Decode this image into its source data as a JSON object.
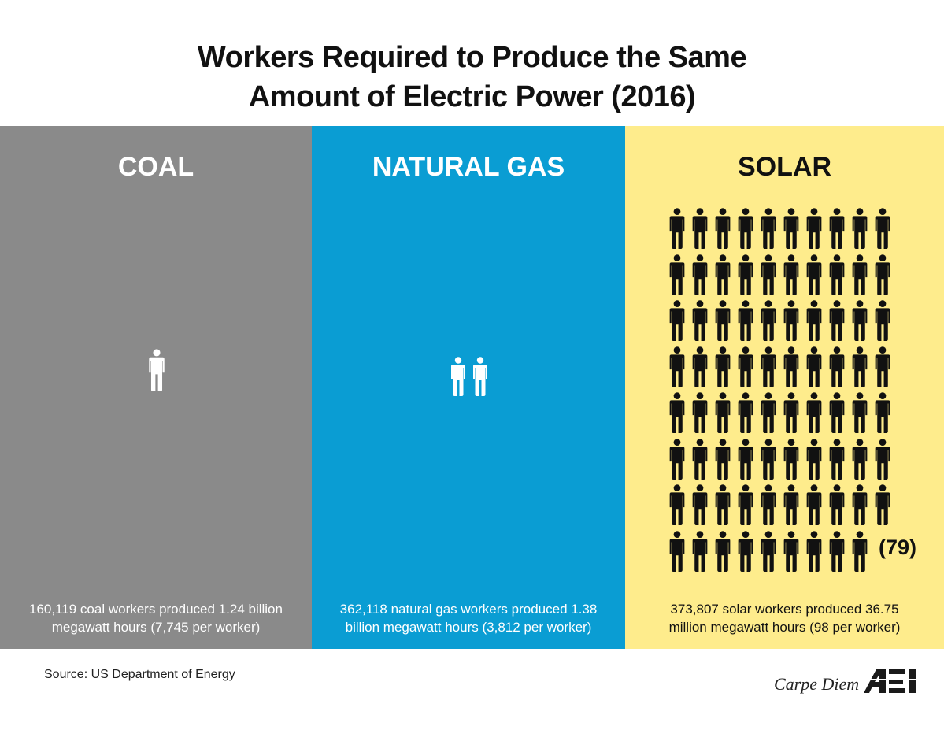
{
  "title": {
    "line1": "Workers Required to Produce the Same",
    "line2": "Amount of Electric Power (2016)"
  },
  "panels": {
    "coal": {
      "label": "COAL",
      "color": "#8a8a8a",
      "icon_color": "#ffffff",
      "workers_icon_count": 1,
      "caption_line1": "160,119 coal workers produced 1.24 billion",
      "caption_line2": "megawatt hours (7,745 per worker)"
    },
    "natural_gas": {
      "label": "NATURAL GAS",
      "color": "#0a9dd3",
      "icon_color": "#ffffff",
      "workers_icon_count": 2,
      "caption_line1": "362,118 natural gas workers produced 1.38",
      "caption_line2": "billion megawatt hours (3,812 per worker)"
    },
    "solar": {
      "label": "SOLAR",
      "color": "#feec8c",
      "icon_color": "#111111",
      "workers_icon_count": 79,
      "count_label": "(79)",
      "caption_line1": "373,807 solar workers produced 36.75",
      "caption_line2": "million megawatt hours (98 per worker)"
    }
  },
  "footer": {
    "source": "Source: US Department of Energy",
    "brand": "Carpe Diem",
    "logo": "AEI"
  },
  "icons": {
    "worker": "person-icon"
  }
}
